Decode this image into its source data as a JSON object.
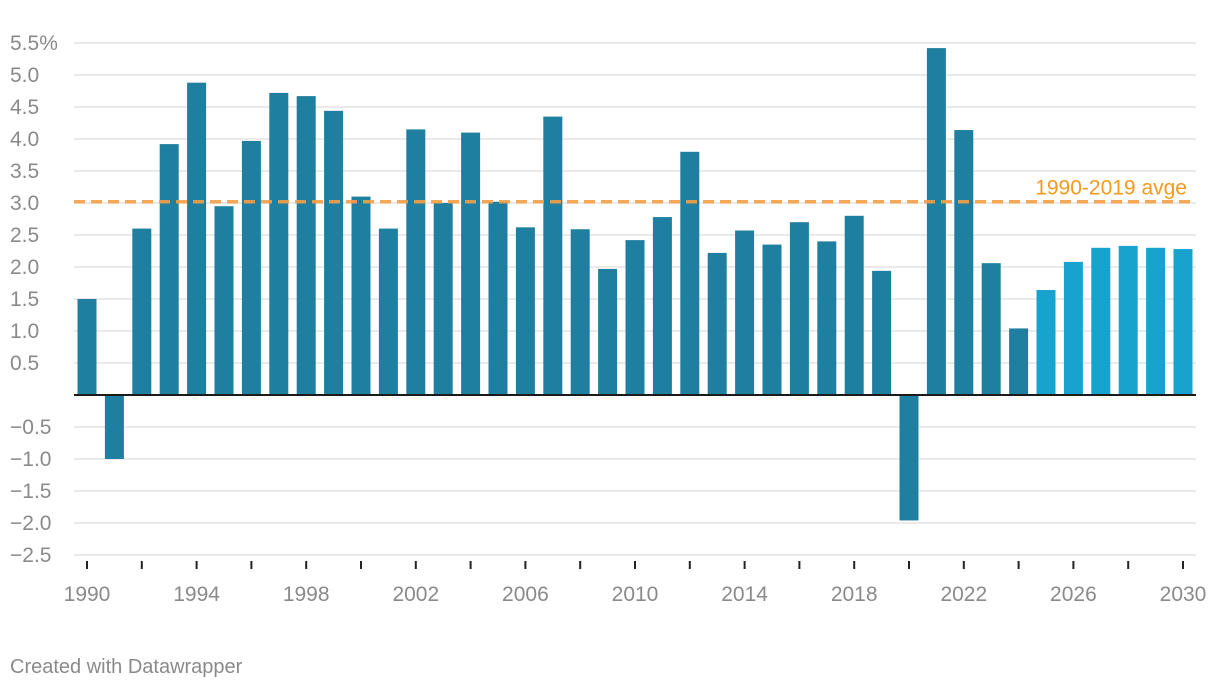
{
  "chart_data": {
    "type": "bar",
    "title": "",
    "xlabel": "",
    "ylabel": "",
    "ylim": [
      -2.5,
      5.5
    ],
    "y_ticks": [
      -2.5,
      -2.0,
      -1.5,
      -1.0,
      -0.5,
      0.5,
      1.0,
      1.5,
      2.0,
      2.5,
      3.0,
      3.5,
      4.0,
      4.5,
      5.0,
      5.5
    ],
    "y_tick_labels": [
      "−2.5",
      "−2.0",
      "−1.5",
      "−1.0",
      "−0.5",
      "0.5",
      "1.0",
      "1.5",
      "2.0",
      "2.5",
      "3.0",
      "3.5",
      "4.0",
      "4.5",
      "5.0",
      "5.5%"
    ],
    "x_tick_years": [
      1990,
      1994,
      1998,
      2002,
      2006,
      2010,
      2014,
      2018,
      2022,
      2026,
      2030
    ],
    "x_minor_tick_years": [
      1990,
      1992,
      1994,
      1996,
      1998,
      2000,
      2002,
      2004,
      2006,
      2008,
      2010,
      2012,
      2014,
      2016,
      2018,
      2020,
      2022,
      2024,
      2026,
      2028,
      2030
    ],
    "categories": [
      1990,
      1991,
      1992,
      1993,
      1994,
      1995,
      1996,
      1997,
      1998,
      1999,
      2000,
      2001,
      2002,
      2003,
      2004,
      2005,
      2006,
      2007,
      2008,
      2009,
      2010,
      2011,
      2012,
      2013,
      2014,
      2015,
      2016,
      2017,
      2018,
      2019,
      2020,
      2021,
      2022,
      2023,
      2024,
      2025,
      2026,
      2027,
      2028,
      2029,
      2030
    ],
    "values": [
      1.5,
      -1.0,
      2.6,
      3.92,
      4.88,
      2.95,
      3.97,
      4.72,
      4.67,
      4.44,
      3.1,
      2.6,
      4.15,
      3.0,
      4.1,
      3.02,
      2.62,
      4.35,
      2.59,
      1.97,
      2.42,
      2.78,
      3.8,
      2.22,
      2.57,
      2.35,
      2.7,
      2.4,
      2.8,
      1.94,
      -1.96,
      5.42,
      4.14,
      2.06,
      1.04,
      1.64,
      2.08,
      2.3,
      2.33,
      2.3,
      2.28
    ],
    "forecast_from": 2025,
    "reference_line": {
      "value": 3.02,
      "label": "1990-2019 avge"
    },
    "colors": {
      "actual": "#1e7fa0",
      "forecast": "#18a3cf",
      "average": "#f5a046",
      "average_label": "#f29a1e",
      "grid": "#e3e3e3",
      "zero": "#1a1a1a",
      "tick_label": "#8a8a8a"
    }
  },
  "footer": {
    "credit": "Created with Datawrapper"
  }
}
